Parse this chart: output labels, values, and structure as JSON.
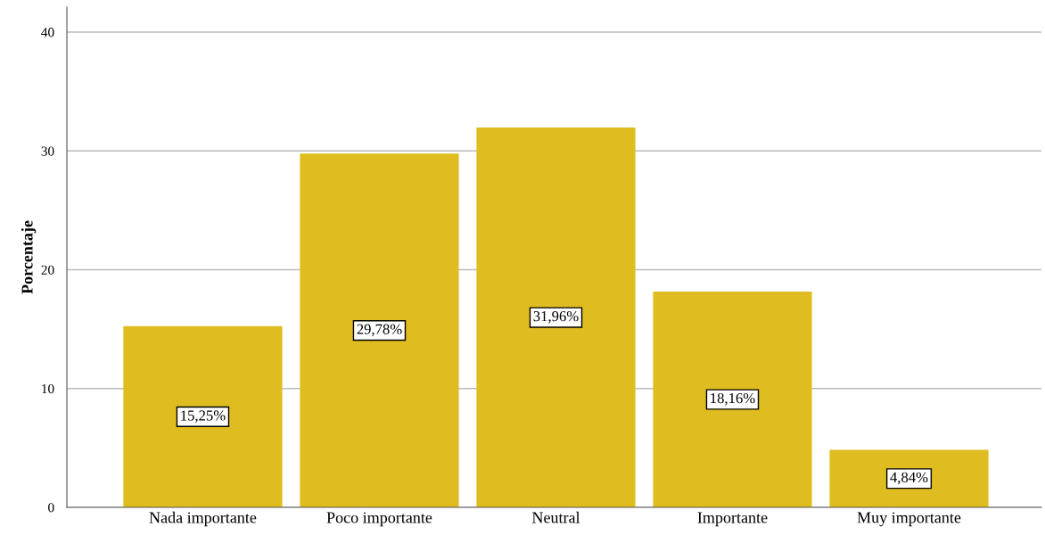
{
  "chart_data": {
    "type": "bar",
    "ylabel": "Porcentaje",
    "categories": [
      "Nada importante",
      "Poco importante",
      "Neutral",
      "Importante",
      "Muy importante"
    ],
    "values": [
      15.25,
      29.78,
      31.96,
      18.16,
      4.84
    ],
    "value_labels": [
      "15,25%",
      "29,78%",
      "31,96%",
      "18,16%",
      "4,84%"
    ],
    "color": "#dfbc1f",
    "ylim": [
      0,
      42.1
    ],
    "yticks": [
      0,
      10,
      20,
      30,
      40
    ],
    "grid": "y",
    "legend": false
  }
}
